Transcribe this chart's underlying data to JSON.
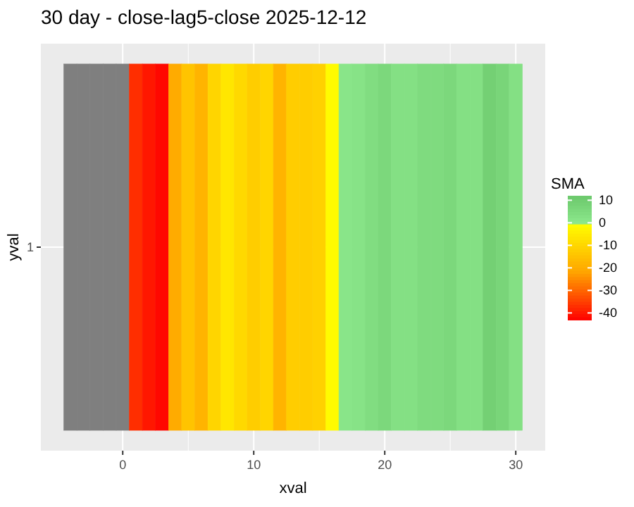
{
  "chart_data": {
    "type": "heatmap",
    "title": "30 day - close-lag5-close  2025-12-12",
    "xlabel": "xval",
    "ylabel": "yval",
    "legend_title": "SMA",
    "x": [
      -4,
      -3,
      -2,
      -1,
      0,
      1,
      2,
      3,
      4,
      5,
      6,
      7,
      8,
      9,
      10,
      11,
      12,
      13,
      14,
      15,
      16,
      17,
      18,
      19,
      20,
      21,
      22,
      23,
      24,
      25,
      26,
      27,
      28,
      29,
      30
    ],
    "y_categories": [
      "1"
    ],
    "cells": [
      [
        null,
        null,
        null,
        null,
        null,
        -37,
        -40,
        -42,
        -20,
        -14,
        -18,
        -10,
        -6,
        -9,
        -12,
        -10,
        -18,
        -12,
        -12,
        -11,
        -1,
        1,
        2,
        4,
        6,
        3,
        3,
        5,
        5,
        6,
        3,
        3,
        9,
        7,
        3
      ]
    ],
    "xlim": [
      -6.25,
      32.25
    ],
    "xticks": [
      0,
      10,
      20,
      30
    ],
    "clim": [
      -43,
      12
    ],
    "cticks": [
      10,
      0,
      -10,
      -20,
      -30,
      -40
    ],
    "grid": true
  }
}
